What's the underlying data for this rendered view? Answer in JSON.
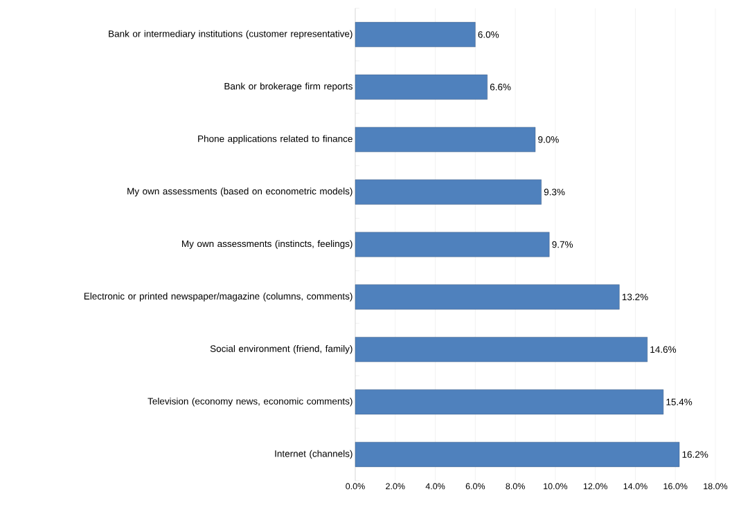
{
  "chart_data": {
    "type": "bar",
    "orientation": "horizontal",
    "categories": [
      "Bank or intermediary institutions (customer representative)",
      "Bank or brokerage firm reports",
      "Phone applications related to finance",
      "My own assessments (based on econometric models)",
      "My own assessments (instincts, feelings)",
      "Electronic or printed newspaper/magazine (columns, comments)",
      "Social environment (friend, family)",
      "Television (economy news, economic comments)",
      "Internet (channels)"
    ],
    "values": [
      6.0,
      6.6,
      9.0,
      9.3,
      9.7,
      13.2,
      14.6,
      15.4,
      16.2
    ],
    "value_labels": [
      "6.0%",
      "6.6%",
      "9.0%",
      "9.3%",
      "9.7%",
      "13.2%",
      "14.6%",
      "15.4%",
      "16.2%"
    ],
    "color": "#4f81bd",
    "xlim": [
      0,
      18
    ],
    "xticks": [
      {
        "value": 0,
        "label": "0.0%"
      },
      {
        "value": 2,
        "label": "2.0%"
      },
      {
        "value": 4,
        "label": "4.0%"
      },
      {
        "value": 6,
        "label": "6.0%"
      },
      {
        "value": 8,
        "label": "8.0%"
      },
      {
        "value": 10,
        "label": "10.0%"
      },
      {
        "value": 12,
        "label": "12.0%"
      },
      {
        "value": 14,
        "label": "14.0%"
      },
      {
        "value": 16,
        "label": "16.0%"
      },
      {
        "value": 18,
        "label": "18.0%"
      }
    ],
    "grid": "x"
  }
}
